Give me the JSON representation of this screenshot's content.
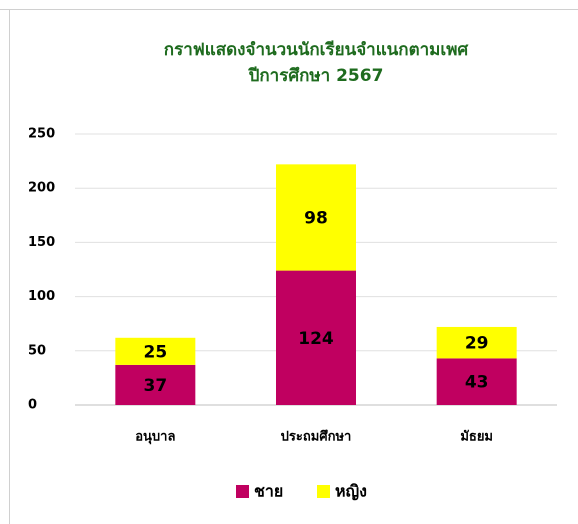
{
  "chart_data": {
    "type": "stacked_bar",
    "title": "กราฟแสดงจำนวนนักเรียนจำแนกตามเพศ",
    "subtitle": "ปีการศึกษา 2567",
    "categories": [
      "อนุบาล",
      "ประถมศึกษา",
      "มัธยม"
    ],
    "series": [
      {
        "name": "ชาย",
        "color": "#c00060",
        "values": [
          37,
          124,
          43
        ]
      },
      {
        "name": "หญิง",
        "color": "#ffff00",
        "values": [
          25,
          98,
          29
        ]
      }
    ],
    "ylim": [
      0,
      250
    ],
    "yticks": [
      0,
      50,
      100,
      150,
      200,
      250
    ],
    "grid": true,
    "legend": "bottom"
  }
}
